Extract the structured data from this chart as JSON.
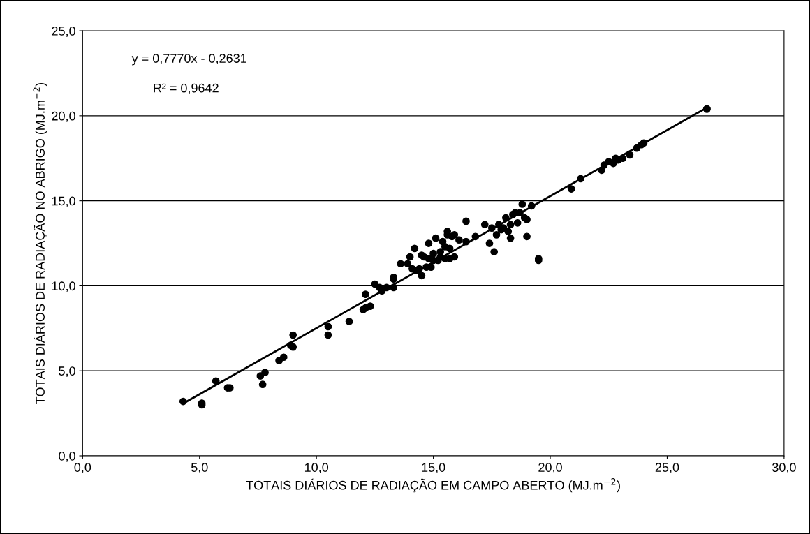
{
  "chart_data": {
    "type": "scatter",
    "xlabel": "TOTAIS DIÁRIOS DE RADIAÇÃO EM CAMPO ABERTO (MJ.m$^{−2}$)",
    "ylabel": "TOTAIS DIÁRIOS DE RADIAÇÃO NO ABRIGO (MJ.m$^{−2}$)",
    "annotations": [
      "y = 0,7770x - 0,2631",
      "R² = 0,9642"
    ],
    "xlim": [
      0,
      30
    ],
    "ylim": [
      0,
      25
    ],
    "xticks": [
      {
        "value": 0,
        "label": "0,0"
      },
      {
        "value": 5,
        "label": "5,0"
      },
      {
        "value": 10,
        "label": "10,0"
      },
      {
        "value": 15,
        "label": "15,0"
      },
      {
        "value": 20,
        "label": "20,0"
      },
      {
        "value": 25,
        "label": "25,0"
      },
      {
        "value": 30,
        "label": "30,0"
      }
    ],
    "yticks": [
      {
        "value": 0,
        "label": "0,0"
      },
      {
        "value": 5,
        "label": "5,0"
      },
      {
        "value": 10,
        "label": "10,0"
      },
      {
        "value": 15,
        "label": "15,0"
      },
      {
        "value": 20,
        "label": "20,0"
      },
      {
        "value": 25,
        "label": "25,0"
      }
    ],
    "grid": "y",
    "legend": false,
    "marker": "circle",
    "series": [
      {
        "color": "#000000",
        "x": [
          4.3,
          5.1,
          5.1,
          5.7,
          6.2,
          6.3,
          7.6,
          7.7,
          7.8,
          8.4,
          8.6,
          8.9,
          9.0,
          9.0,
          10.5,
          10.5,
          11.4,
          12.0,
          12.1,
          12.1,
          12.3,
          12.5,
          12.7,
          12.8,
          13.0,
          13.3,
          13.3,
          13.3,
          13.6,
          13.9,
          14.0,
          14.1,
          14.2,
          14.3,
          14.4,
          14.5,
          14.5,
          14.6,
          14.7,
          14.8,
          14.8,
          14.9,
          15.0,
          15.0,
          15.1,
          15.2,
          15.3,
          15.3,
          15.4,
          15.5,
          15.5,
          15.6,
          15.6,
          15.7,
          15.7,
          15.8,
          15.9,
          15.9,
          16.1,
          16.4,
          16.4,
          16.8,
          17.2,
          17.4,
          17.5,
          17.6,
          17.7,
          17.8,
          17.9,
          18.0,
          18.1,
          18.2,
          18.3,
          18.3,
          18.4,
          18.5,
          18.6,
          18.7,
          18.8,
          18.9,
          19.0,
          19.0,
          19.2,
          19.5,
          19.5,
          20.9,
          21.3,
          22.2,
          22.3,
          22.5,
          22.7,
          22.8,
          22.9,
          23.1,
          23.4,
          23.7,
          23.9,
          24.0,
          26.7,
          26.7
        ],
        "values": [
          3.2,
          3.1,
          3.0,
          4.4,
          4.0,
          4.0,
          4.7,
          4.2,
          4.9,
          5.6,
          5.8,
          6.5,
          6.4,
          7.1,
          7.6,
          7.1,
          7.9,
          8.6,
          8.7,
          9.5,
          8.8,
          10.1,
          9.9,
          9.7,
          9.9,
          10.5,
          10.4,
          9.9,
          11.3,
          11.3,
          11.7,
          11.0,
          12.2,
          10.9,
          11.0,
          10.6,
          11.8,
          11.7,
          11.1,
          11.6,
          12.5,
          11.1,
          11.5,
          11.9,
          12.8,
          11.5,
          12.0,
          11.7,
          12.6,
          11.6,
          12.3,
          13.0,
          13.2,
          12.2,
          11.6,
          12.9,
          13.0,
          11.7,
          12.7,
          13.8,
          12.6,
          12.9,
          13.6,
          12.5,
          13.4,
          12.0,
          13.0,
          13.6,
          13.3,
          13.4,
          14.0,
          13.2,
          12.8,
          13.6,
          14.2,
          14.3,
          13.7,
          14.3,
          14.8,
          14.0,
          12.9,
          13.9,
          14.7,
          11.6,
          11.5,
          15.7,
          16.3,
          16.8,
          17.1,
          17.3,
          17.2,
          17.5,
          17.4,
          17.5,
          17.7,
          18.1,
          18.3,
          18.4,
          20.4,
          20.4
        ]
      },
      {
        "type": "line",
        "color": "#000000",
        "marker": "none",
        "x": [
          4.3,
          26.7
        ],
        "values": [
          3.08,
          20.48
        ]
      }
    ]
  }
}
